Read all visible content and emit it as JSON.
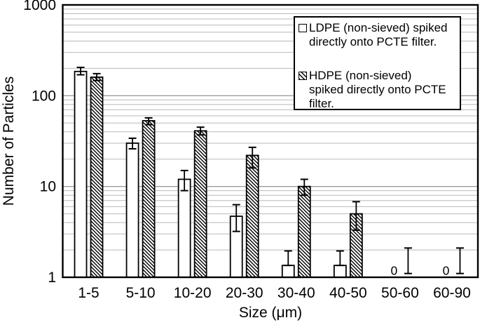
{
  "figure": {
    "background": "#ffffff"
  },
  "axes": {
    "y_label": "Number of Particles",
    "x_label": "Size (μm)",
    "y_scale": "log",
    "y_min": 1,
    "y_max": 1000,
    "y_ticks": [
      {
        "label": "1",
        "value": 1
      },
      {
        "label": "10",
        "value": 10
      },
      {
        "label": "100",
        "value": 100
      },
      {
        "label": "1000",
        "value": 1000
      }
    ]
  },
  "legend": {
    "items": [
      {
        "marker": "open-square",
        "label": "LDPE (non-sieved) spiked directly onto PCTE filter.",
        "lines": [
          "LDPE (non-sieved) spiked",
          "directly onto PCTE filter."
        ]
      },
      {
        "marker": "hatched-square",
        "label": "HDPE (non-sieved) spiked directly onto PCTE filter.",
        "lines": [
          "HDPE (non-sieved)",
          "spiked directly onto PCTE",
          "filter."
        ]
      }
    ]
  },
  "chart_data": {
    "type": "bar",
    "title": "",
    "xlabel": "Size (μm)",
    "ylabel": "Number of Particles",
    "y_scale": "log",
    "ylim": [
      1,
      1000
    ],
    "grid": "horizontal log gridlines, minor and major",
    "legend_position": "upper right",
    "categories": [
      "1-5",
      "5-10",
      "10-20",
      "20-30",
      "30-40",
      "40-50",
      "50-60",
      "60-90"
    ],
    "series": [
      {
        "name": "LDPE (non-sieved) spiked directly onto PCTE filter.",
        "style": "open",
        "zero_label": "0",
        "values": [
          185,
          30,
          12,
          4.7,
          1.35,
          1.35,
          0,
          0
        ],
        "err_low": [
          170,
          26,
          9,
          3.2,
          1.35,
          1.35,
          null,
          null
        ],
        "err_high": [
          205,
          34,
          15,
          6.3,
          1.95,
          1.95,
          null,
          null
        ]
      },
      {
        "name": "HDPE (non-sieved) spiked directly onto PCTE filter.",
        "style": "hatched",
        "values": [
          160,
          53,
          41,
          22,
          10,
          5,
          1,
          1
        ],
        "err_low": [
          147,
          48,
          37,
          16,
          8,
          3.3,
          1.1,
          1.1
        ],
        "err_high": [
          175,
          57,
          45,
          27,
          12,
          6.8,
          2.1,
          2.1
        ]
      }
    ]
  },
  "colors": {
    "axis": "#000000",
    "grid_minor": "#b9b9b9",
    "grid_major": "#8a8a8a",
    "bar_fill": "#ffffff",
    "bar_stroke": "#000000",
    "text": "#000000"
  }
}
